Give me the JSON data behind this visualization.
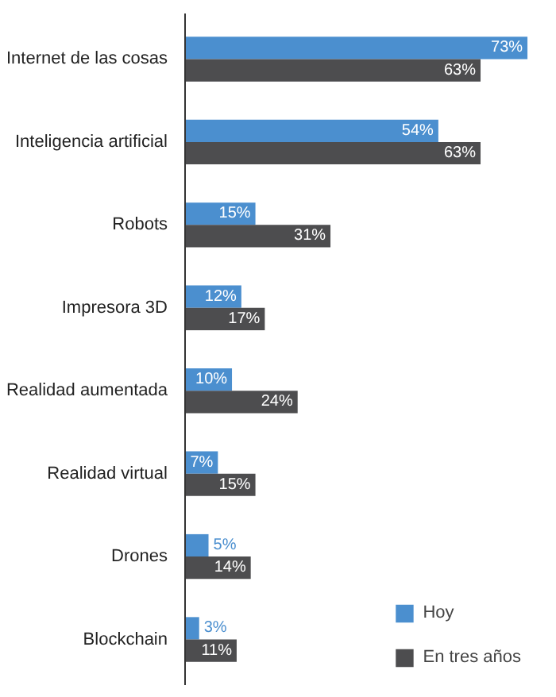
{
  "chart_data": {
    "type": "bar",
    "orientation": "horizontal",
    "categories": [
      "Internet de las cosas",
      "Inteligencia artificial",
      "Robots",
      "Impresora 3D",
      "Realidad aumentada",
      "Realidad virtual",
      "Drones",
      "Blockchain"
    ],
    "series": [
      {
        "name": "Hoy",
        "color": "#4b8fcf",
        "values": [
          73,
          54,
          15,
          12,
          10,
          7,
          5,
          3
        ],
        "value_labels": [
          "73%",
          "54%",
          "15%",
          "12%",
          "10%",
          "7%",
          "5%",
          "3%"
        ]
      },
      {
        "name": "En tres años",
        "color": "#4d4d4f",
        "values": [
          63,
          63,
          31,
          17,
          24,
          15,
          14,
          11
        ],
        "value_labels": [
          "63%",
          "63%",
          "31%",
          "17%",
          "24%",
          "15%",
          "14%",
          "11%"
        ]
      }
    ],
    "legend": "bottom right",
    "grid": false
  }
}
